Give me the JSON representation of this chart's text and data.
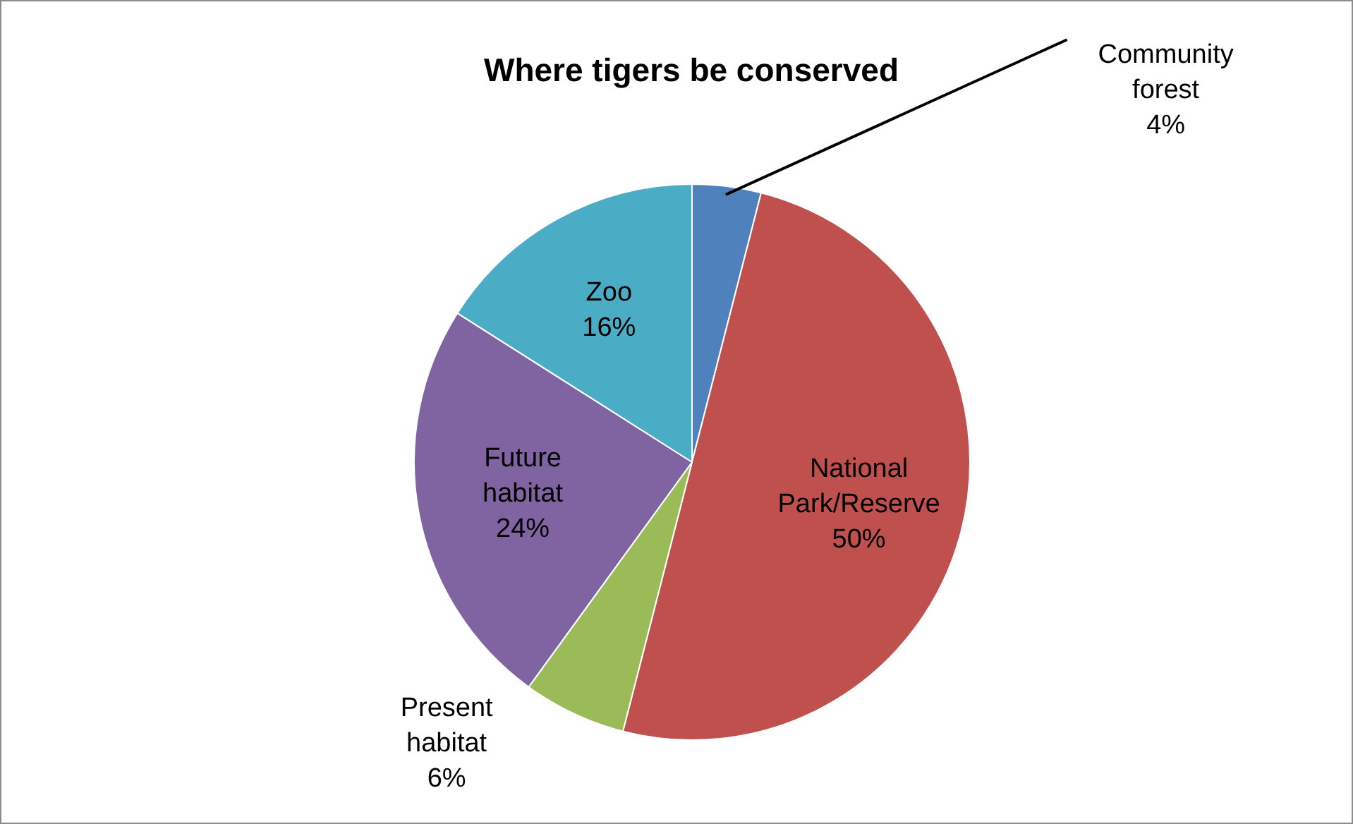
{
  "chart_data": {
    "type": "pie",
    "title": "Where tigers be conserved",
    "categories": [
      "Community forest",
      "National Park/Reserve",
      "Present habitat",
      "Future habitat",
      "Zoo"
    ],
    "values": [
      4,
      50,
      6,
      24,
      16
    ],
    "value_labels": [
      "4%",
      "50%",
      "6%",
      "24%",
      "16%"
    ],
    "colors": [
      "#4f81bd",
      "#c0504d",
      "#9bbb59",
      "#8064a2",
      "#4bacc6"
    ],
    "legend": false
  }
}
